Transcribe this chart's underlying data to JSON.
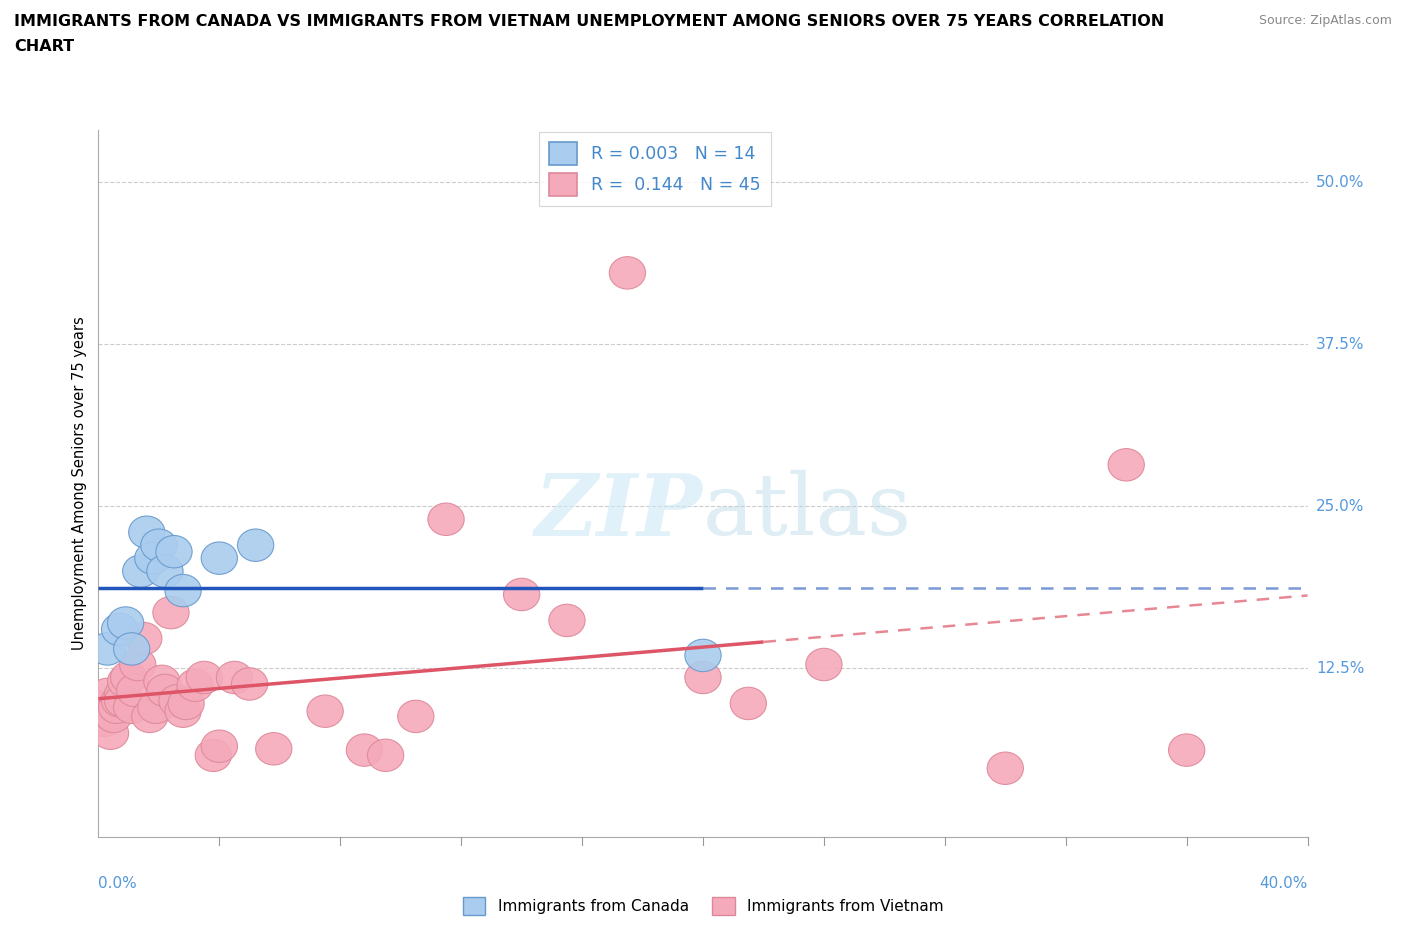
{
  "title_line1": "IMMIGRANTS FROM CANADA VS IMMIGRANTS FROM VIETNAM UNEMPLOYMENT AMONG SENIORS OVER 75 YEARS CORRELATION",
  "title_line2": "CHART",
  "source": "Source: ZipAtlas.com",
  "ylabel": "Unemployment Among Seniors over 75 years",
  "xlim": [
    0.0,
    0.4
  ],
  "ylim": [
    -0.005,
    0.54
  ],
  "canada_R": "0.003",
  "canada_N": "14",
  "vietnam_R": "0.144",
  "vietnam_N": "45",
  "canada_color": "#aaccee",
  "vietnam_color": "#f5aabb",
  "canada_edge_color": "#6699cc",
  "vietnam_edge_color": "#dd8899",
  "canada_line_color": "#2255bb",
  "vietnam_line_color": "#dd5566",
  "label_color": "#4488cc",
  "right_label_color": "#5599dd",
  "watermark_color": "#cce8f5",
  "ytick_values": [
    0.125,
    0.25,
    0.375,
    0.5
  ],
  "ytick_labels": [
    "12.5%",
    "25.0%",
    "37.5%",
    "50.0%"
  ],
  "canada_x": [
    0.003,
    0.007,
    0.009,
    0.011,
    0.014,
    0.016,
    0.018,
    0.02,
    0.022,
    0.025,
    0.028,
    0.04,
    0.052,
    0.2
  ],
  "canada_y": [
    0.14,
    0.155,
    0.16,
    0.14,
    0.2,
    0.23,
    0.21,
    0.22,
    0.2,
    0.215,
    0.185,
    0.21,
    0.22,
    0.135
  ],
  "vietnam_x": [
    0.001,
    0.002,
    0.003,
    0.004,
    0.004,
    0.005,
    0.006,
    0.007,
    0.008,
    0.008,
    0.009,
    0.01,
    0.011,
    0.012,
    0.013,
    0.015,
    0.017,
    0.019,
    0.021,
    0.022,
    0.024,
    0.026,
    0.028,
    0.029,
    0.032,
    0.035,
    0.038,
    0.04,
    0.045,
    0.05,
    0.058,
    0.075,
    0.088,
    0.095,
    0.105,
    0.115,
    0.14,
    0.155,
    0.175,
    0.2,
    0.215,
    0.24,
    0.3,
    0.34,
    0.36
  ],
  "vietnam_y": [
    0.095,
    0.085,
    0.105,
    0.075,
    0.09,
    0.088,
    0.095,
    0.1,
    0.105,
    0.1,
    0.115,
    0.118,
    0.095,
    0.108,
    0.128,
    0.148,
    0.088,
    0.095,
    0.115,
    0.108,
    0.168,
    0.1,
    0.092,
    0.098,
    0.112,
    0.118,
    0.058,
    0.065,
    0.118,
    0.113,
    0.063,
    0.092,
    0.062,
    0.058,
    0.088,
    0.24,
    0.182,
    0.162,
    0.43,
    0.118,
    0.098,
    0.128,
    0.048,
    0.282,
    0.062
  ]
}
